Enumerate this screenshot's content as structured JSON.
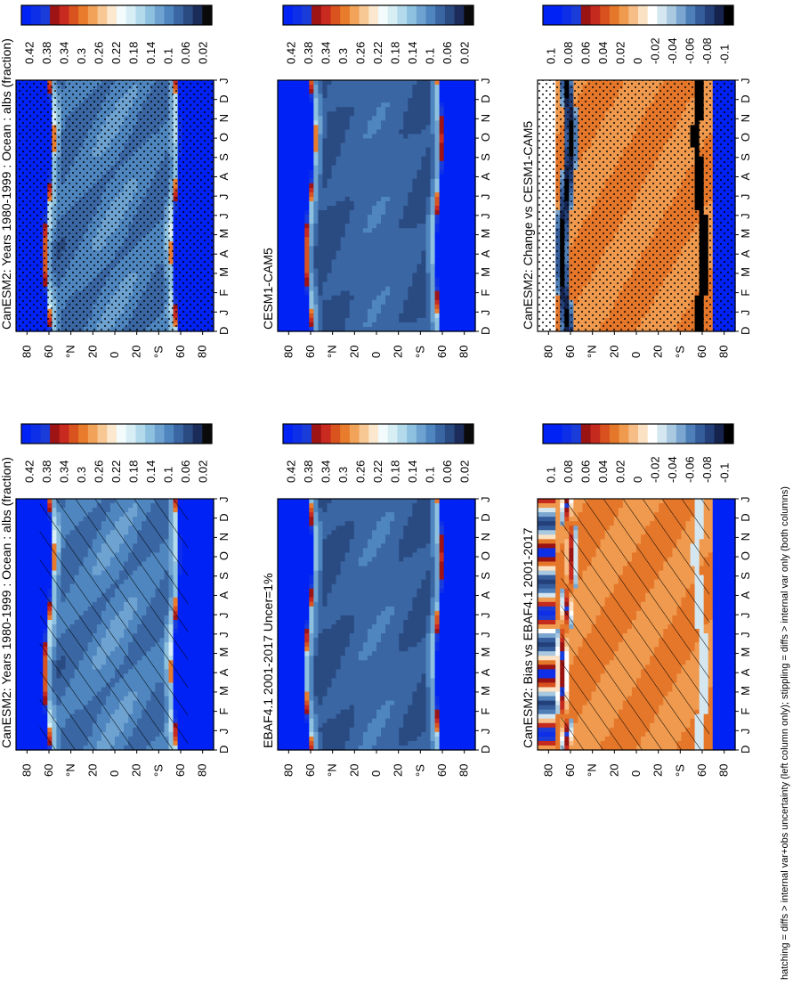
{
  "footnote": "hatching = diffs > internal var+obs uncertainty (left column only); stippling = diffs > internal var only (both columns)",
  "palettes": {
    "absolute": [
      "#0a0a0a",
      "#1b2c5a",
      "#2a4a82",
      "#3a66a3",
      "#4f86bf",
      "#6ea3d1",
      "#8ec1df",
      "#b3daeb",
      "#d8eef5",
      "#f3fbfd",
      "#fbe8cf",
      "#f8c894",
      "#f2a35a",
      "#e87c2c",
      "#d9531e",
      "#c82a1f",
      "#9e1414",
      "#1a3cd9",
      "#0e2fe8",
      "#0022f5"
    ],
    "diff": [
      "#000000",
      "#15234d",
      "#23407a",
      "#355d9c",
      "#4f7fb8",
      "#7aa6cf",
      "#a9c9e1",
      "#d4e6f0",
      "#ffffff",
      "#fbe2c4",
      "#f6bd86",
      "#ef9a4e",
      "#e5772a",
      "#d8511e",
      "#c52a1e",
      "#991313",
      "#1a3cd9",
      "#0e2fe8",
      "#0022f5",
      "#0022f5"
    ]
  },
  "chart_data": [
    {
      "type": "heatmap",
      "title": "CanESM2: Years 1980-1999 : Ocean : albs (fraction)",
      "x_ticks": [
        "D",
        "J",
        "F",
        "M",
        "A",
        "M",
        "J",
        "J",
        "A",
        "S",
        "O",
        "N",
        "D",
        "J"
      ],
      "y_ticks": [
        "80",
        "60",
        "°N",
        "20",
        "0",
        "20",
        "°S",
        "60",
        "80"
      ],
      "colorbar": {
        "labels": [
          "0.42",
          "0.38",
          "0.34",
          "0.3",
          "0.26",
          "0.22",
          "0.18",
          "0.14",
          "0.1",
          "0.06",
          "0.02"
        ],
        "palette": "absolute"
      },
      "overlay": "hatching",
      "field": {
        "kind": "albedo",
        "equator": 0.09,
        "edgeN": 62,
        "edgeS": -57,
        "ripple": 0.015
      }
    },
    {
      "type": "heatmap",
      "title": "CanESM2: Years 1980-1999 : Ocean : albs (fraction)",
      "x_ticks": [
        "D",
        "J",
        "F",
        "M",
        "A",
        "M",
        "J",
        "J",
        "A",
        "S",
        "O",
        "N",
        "D",
        "J"
      ],
      "y_ticks": [
        "80",
        "60",
        "°N",
        "20",
        "0",
        "20",
        "°S",
        "60",
        "80"
      ],
      "colorbar": {
        "labels": [
          "0.42",
          "0.38",
          "0.34",
          "0.3",
          "0.26",
          "0.22",
          "0.18",
          "0.14",
          "0.1",
          "0.06",
          "0.02"
        ],
        "palette": "absolute"
      },
      "overlay": "stippling",
      "field": {
        "kind": "albedo",
        "equator": 0.09,
        "edgeN": 62,
        "edgeS": -57,
        "ripple": 0.015
      }
    },
    {
      "type": "heatmap",
      "title": "EBAF4.1 2001-2017 Uncer=1%",
      "x_ticks": [
        "D",
        "J",
        "F",
        "M",
        "A",
        "M",
        "J",
        "J",
        "A",
        "S",
        "O",
        "N",
        "D",
        "J"
      ],
      "y_ticks": [
        "80",
        "60",
        "°N",
        "20",
        "0",
        "20",
        "°S",
        "60",
        "80"
      ],
      "colorbar": {
        "labels": [
          "0.42",
          "0.38",
          "0.34",
          "0.3",
          "0.26",
          "0.22",
          "0.18",
          "0.14",
          "0.1",
          "0.06",
          "0.02"
        ],
        "palette": "absolute"
      },
      "overlay": "none",
      "field": {
        "kind": "albedo",
        "equator": 0.07,
        "edgeN": 63,
        "edgeS": -58,
        "ripple": 0.01
      }
    },
    {
      "type": "heatmap",
      "title": "CESM1-CAM5",
      "x_ticks": [
        "D",
        "J",
        "F",
        "M",
        "A",
        "M",
        "J",
        "J",
        "A",
        "S",
        "O",
        "N",
        "D",
        "J"
      ],
      "y_ticks": [
        "80",
        "60",
        "°N",
        "20",
        "0",
        "20",
        "°S",
        "60",
        "80"
      ],
      "colorbar": {
        "labels": [
          "0.42",
          "0.38",
          "0.34",
          "0.3",
          "0.26",
          "0.22",
          "0.18",
          "0.14",
          "0.1",
          "0.06",
          "0.02"
        ],
        "palette": "absolute"
      },
      "overlay": "none",
      "field": {
        "kind": "albedo",
        "equator": 0.07,
        "edgeN": 62,
        "edgeS": -58,
        "ripple": 0.008
      }
    },
    {
      "type": "heatmap",
      "title": "CanESM2: Bias vs EBAF4.1 2001-2017",
      "x_ticks": [
        "D",
        "J",
        "F",
        "M",
        "A",
        "M",
        "J",
        "J",
        "A",
        "S",
        "O",
        "N",
        "D",
        "J"
      ],
      "y_ticks": [
        "80",
        "60",
        "°N",
        "20",
        "0",
        "20",
        "°S",
        "60",
        "80"
      ],
      "colorbar": {
        "labels": [
          "0.1",
          "0.08",
          "0.06",
          "0.04",
          "0.02",
          "0",
          "-0.02",
          "-0.04",
          "-0.06",
          "-0.08",
          "-0.1"
        ],
        "palette": "diff"
      },
      "overlay": "hatching",
      "field": {
        "kind": "diff",
        "base": 0.022,
        "polar": "mixed"
      }
    },
    {
      "type": "heatmap",
      "title": "CanESM2: Change vs CESM1-CAM5",
      "x_ticks": [
        "D",
        "J",
        "F",
        "M",
        "A",
        "M",
        "J",
        "J",
        "A",
        "S",
        "O",
        "N",
        "D",
        "J"
      ],
      "y_ticks": [
        "80",
        "60",
        "°N",
        "20",
        "0",
        "20",
        "°S",
        "60",
        "80"
      ],
      "colorbar": {
        "labels": [
          "0.1",
          "0.08",
          "0.06",
          "0.04",
          "0.02",
          "0",
          "-0.02",
          "-0.04",
          "-0.06",
          "-0.08",
          "-0.1"
        ],
        "palette": "diff"
      },
      "overlay": "stippling",
      "field": {
        "kind": "diff",
        "base": 0.022,
        "polar": "dark"
      }
    }
  ]
}
